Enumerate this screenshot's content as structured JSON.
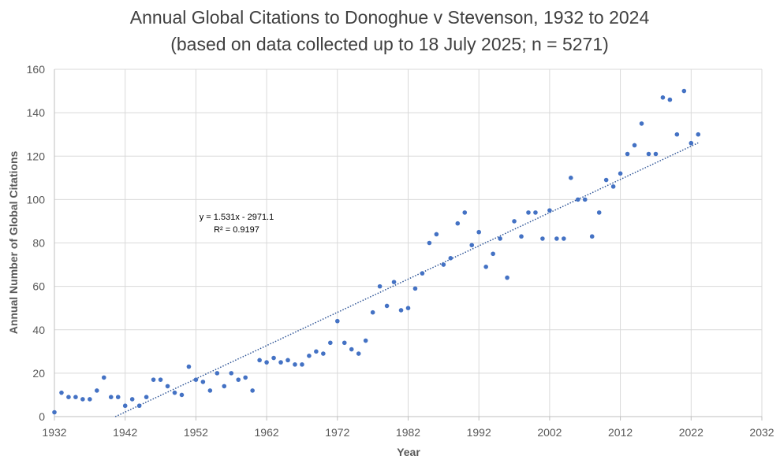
{
  "chart_data": {
    "type": "scatter",
    "title_line1": "Annual Global Citations to Donoghue v Stevenson, 1932 to 2024",
    "title_line2": "(based on data collected up to 18 July 2025; n = 5271)",
    "xlabel": "Year",
    "ylabel": "Annual Number of Global Citations",
    "xlim": [
      1932,
      2032
    ],
    "ylim": [
      0,
      160
    ],
    "x_ticks": [
      1932,
      1942,
      1952,
      1962,
      1972,
      1982,
      1992,
      2002,
      2012,
      2022,
      2032
    ],
    "y_ticks": [
      0,
      20,
      40,
      60,
      80,
      100,
      120,
      140,
      160
    ],
    "grid": true,
    "trendline": {
      "slope": 1.531,
      "intercept": -2971.1,
      "x_range": [
        1940.6,
        2023
      ],
      "equation_label": "y = 1.531x - 2971.1",
      "r2_label": "R² = 0.9197"
    },
    "colors": {
      "points": "#4472c4",
      "trend": "#2f5597",
      "grid": "#d9d9d9",
      "text": "#595959",
      "title": "#404040"
    },
    "points": [
      [
        1932,
        2
      ],
      [
        1933,
        11
      ],
      [
        1934,
        9
      ],
      [
        1935,
        9
      ],
      [
        1936,
        8
      ],
      [
        1937,
        8
      ],
      [
        1938,
        12
      ],
      [
        1939,
        18
      ],
      [
        1940,
        9
      ],
      [
        1941,
        9
      ],
      [
        1942,
        5
      ],
      [
        1943,
        8
      ],
      [
        1944,
        5
      ],
      [
        1945,
        9
      ],
      [
        1946,
        17
      ],
      [
        1947,
        17
      ],
      [
        1948,
        14
      ],
      [
        1949,
        11
      ],
      [
        1950,
        10
      ],
      [
        1951,
        23
      ],
      [
        1952,
        17
      ],
      [
        1953,
        16
      ],
      [
        1954,
        12
      ],
      [
        1955,
        20
      ],
      [
        1956,
        14
      ],
      [
        1957,
        20
      ],
      [
        1958,
        17
      ],
      [
        1959,
        18
      ],
      [
        1960,
        12
      ],
      [
        1961,
        26
      ],
      [
        1962,
        25
      ],
      [
        1963,
        27
      ],
      [
        1964,
        25
      ],
      [
        1965,
        26
      ],
      [
        1966,
        24
      ],
      [
        1967,
        24
      ],
      [
        1968,
        28
      ],
      [
        1969,
        30
      ],
      [
        1970,
        29
      ],
      [
        1971,
        34
      ],
      [
        1972,
        44
      ],
      [
        1973,
        34
      ],
      [
        1974,
        31
      ],
      [
        1975,
        29
      ],
      [
        1976,
        35
      ],
      [
        1977,
        48
      ],
      [
        1978,
        60
      ],
      [
        1979,
        51
      ],
      [
        1980,
        62
      ],
      [
        1981,
        49
      ],
      [
        1982,
        50
      ],
      [
        1983,
        59
      ],
      [
        1984,
        66
      ],
      [
        1985,
        80
      ],
      [
        1986,
        84
      ],
      [
        1987,
        70
      ],
      [
        1988,
        73
      ],
      [
        1989,
        89
      ],
      [
        1990,
        94
      ],
      [
        1991,
        79
      ],
      [
        1992,
        85
      ],
      [
        1993,
        69
      ],
      [
        1994,
        75
      ],
      [
        1995,
        82
      ],
      [
        1996,
        64
      ],
      [
        1997,
        90
      ],
      [
        1998,
        83
      ],
      [
        1999,
        94
      ],
      [
        2000,
        94
      ],
      [
        2001,
        82
      ],
      [
        2002,
        95
      ],
      [
        2003,
        82
      ],
      [
        2004,
        82
      ],
      [
        2005,
        110
      ],
      [
        2006,
        100
      ],
      [
        2007,
        100
      ],
      [
        2008,
        83
      ],
      [
        2009,
        94
      ],
      [
        2010,
        109
      ],
      [
        2011,
        106
      ],
      [
        2012,
        112
      ],
      [
        2013,
        121
      ],
      [
        2014,
        125
      ],
      [
        2015,
        135
      ],
      [
        2016,
        121
      ],
      [
        2017,
        121
      ],
      [
        2018,
        147
      ],
      [
        2019,
        146
      ],
      [
        2020,
        130
      ],
      [
        2021,
        150
      ],
      [
        2022,
        126
      ],
      [
        2023,
        130
      ]
    ]
  }
}
